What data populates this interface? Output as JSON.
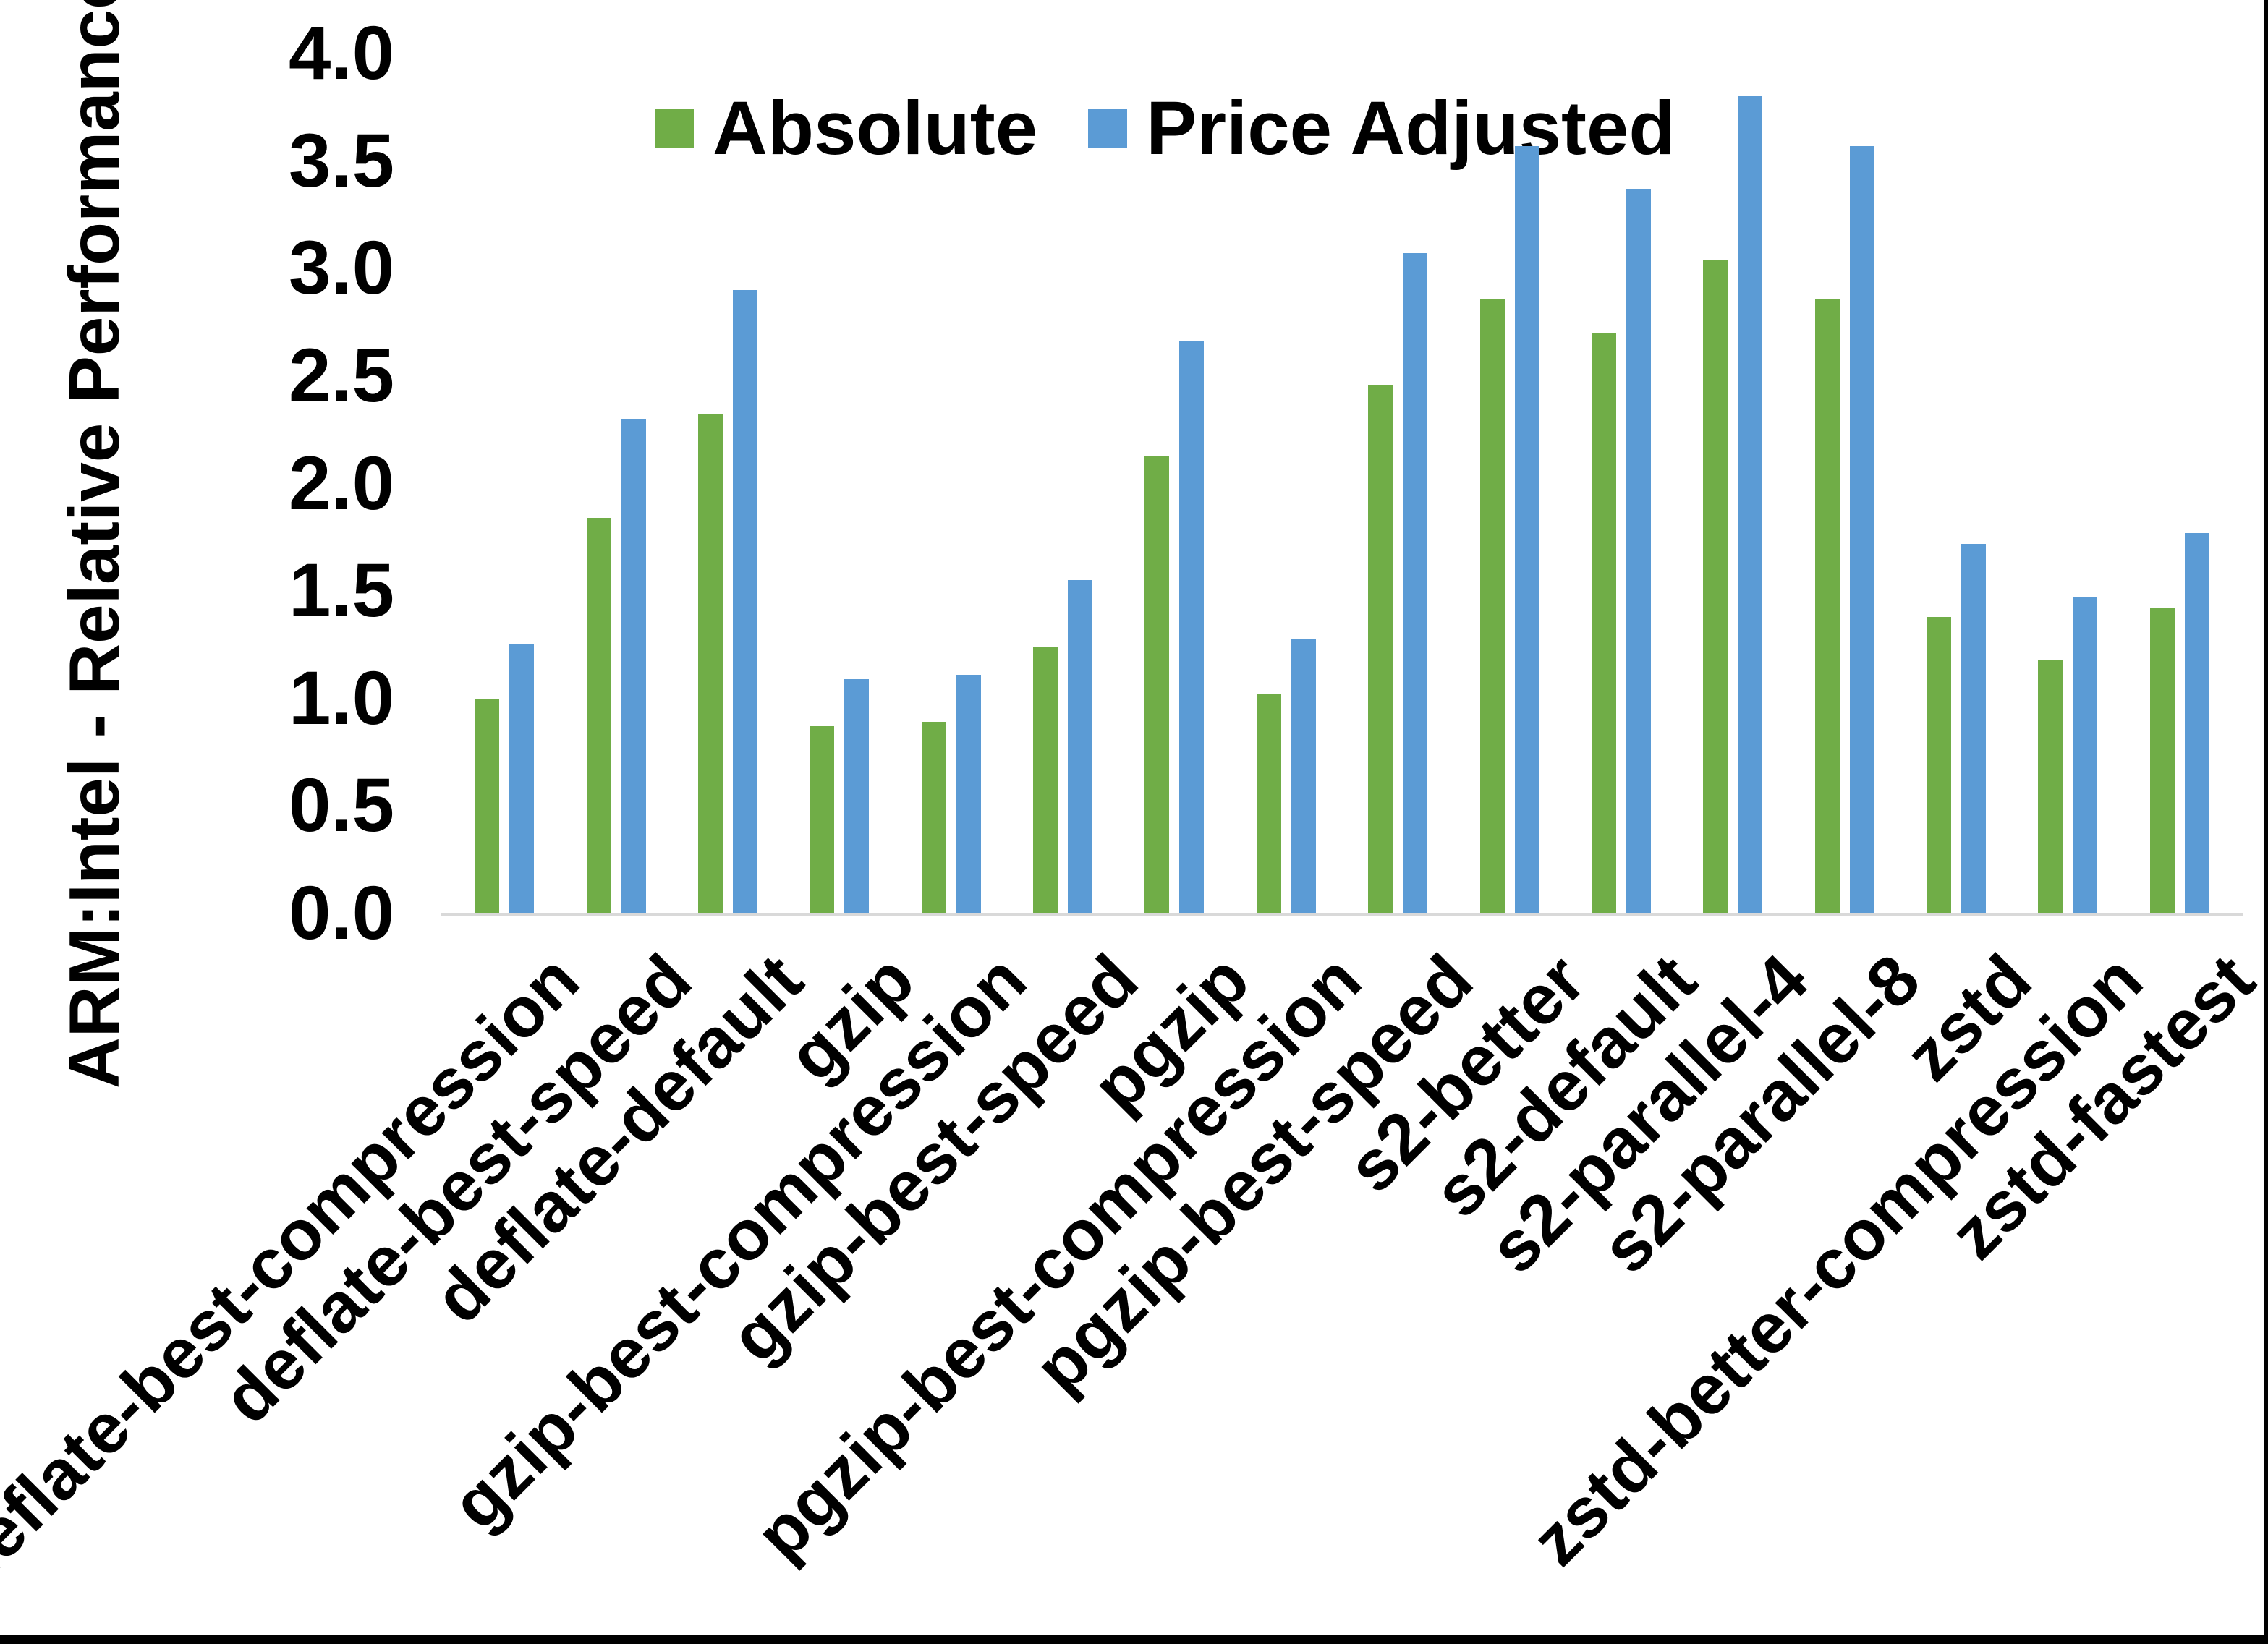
{
  "chart_data": {
    "type": "bar",
    "title": "",
    "ylabel": "ARM:Intel - Relative Performance",
    "xlabel": "",
    "ylim": [
      0.0,
      4.0
    ],
    "ytick_step": 0.5,
    "yticks": [
      "4.0",
      "3.5",
      "3.0",
      "2.5",
      "2.0",
      "1.5",
      "1.0",
      "0.5",
      "0.0"
    ],
    "grid": false,
    "legend_position": "top",
    "x_label_rotation_deg": 45,
    "categories": [
      "deflate-best-compression",
      "deflate-best-speed",
      "deflate-default",
      "gzip",
      "gzip-best-compression",
      "gzip-best-speed",
      "pgzip",
      "pgzip-best-compression",
      "pgzip-best-speed",
      "s2-better",
      "s2-default",
      "s2-parallel-4",
      "s2-parallel-8",
      "zstd",
      "zstd-better-compression",
      "zstd-fastest"
    ],
    "series": [
      {
        "name": "Absolute",
        "color": "#70AD47",
        "values": [
          1.0,
          1.84,
          2.32,
          0.87,
          0.89,
          1.24,
          2.13,
          1.02,
          2.46,
          2.86,
          2.7,
          3.04,
          2.86,
          1.38,
          1.18,
          1.42
        ]
      },
      {
        "name": "Price Adjusted",
        "color": "#5B9BD5",
        "values": [
          1.25,
          2.3,
          2.9,
          1.09,
          1.11,
          1.55,
          2.66,
          1.28,
          3.07,
          3.57,
          3.37,
          3.8,
          3.57,
          1.72,
          1.47,
          1.77
        ]
      }
    ]
  },
  "colors": {
    "background": "#FFFFFF",
    "axis_line": "#D9D9D9",
    "text": "#000000",
    "frame": "#000000"
  }
}
